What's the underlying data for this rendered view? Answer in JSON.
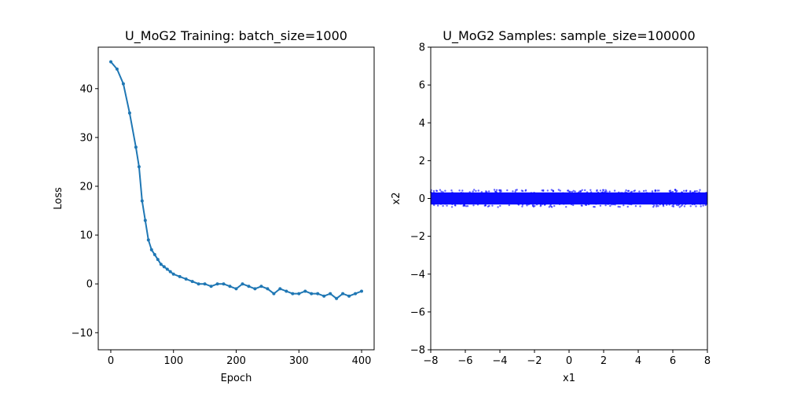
{
  "chart_data": [
    {
      "type": "line",
      "title": "U_MoG2 Training: batch_size=1000",
      "xlabel": "Epoch",
      "ylabel": "Loss",
      "xlim": [
        -20,
        420
      ],
      "ylim": [
        -13.5,
        48.5
      ],
      "xticks": [
        0,
        100,
        200,
        300,
        400
      ],
      "yticks": [
        -10,
        0,
        10,
        20,
        30,
        40
      ],
      "series": [
        {
          "color": "#1f77b4",
          "marker": "point",
          "x": [
            0,
            10,
            20,
            30,
            40,
            45,
            50,
            55,
            60,
            65,
            70,
            75,
            80,
            85,
            90,
            95,
            100,
            110,
            120,
            130,
            140,
            150,
            160,
            170,
            180,
            190,
            200,
            210,
            220,
            230,
            240,
            250,
            260,
            270,
            280,
            290,
            300,
            310,
            320,
            330,
            340,
            350,
            360,
            370,
            380,
            390,
            400
          ],
          "y": [
            45.5,
            44,
            41,
            35,
            28,
            24,
            17,
            13,
            9,
            7,
            6,
            5,
            4,
            3.5,
            3,
            2.5,
            2,
            1.5,
            1,
            0.5,
            0,
            0,
            -0.5,
            0,
            0,
            -0.5,
            -1,
            0,
            -0.5,
            -1,
            -0.5,
            -1,
            -2,
            -1,
            -1.5,
            -2,
            -2,
            -1.5,
            -2,
            -2,
            -2.5,
            -2,
            -3,
            -2,
            -2.5,
            -2,
            -1.5
          ]
        }
      ]
    },
    {
      "type": "scatter",
      "title": "U_MoG2 Samples: sample_size=100000",
      "xlabel": "x1",
      "ylabel": "x2",
      "xlim": [
        -8,
        8
      ],
      "ylim": [
        -8,
        8
      ],
      "xticks": [
        -8,
        -6,
        -4,
        -2,
        0,
        2,
        4,
        6,
        8
      ],
      "yticks": [
        -8,
        -6,
        -4,
        -2,
        0,
        2,
        4,
        6,
        8
      ],
      "series": [
        {
          "color": "#0000ff",
          "distribution": {
            "x_range": [
              -8,
              8
            ],
            "y_center": 0,
            "y_spread": 0.2
          }
        }
      ]
    }
  ]
}
